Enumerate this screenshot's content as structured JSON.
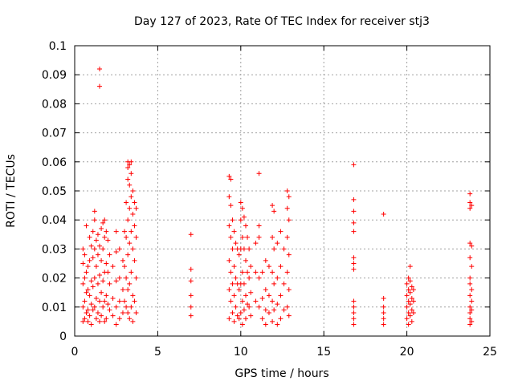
{
  "chart_data": {
    "type": "scatter",
    "title": "Day 127 of 2023, Rate Of TEC Index for receiver stj3",
    "xlabel": "GPS time / hours",
    "ylabel": "ROTI / TECUs",
    "xlim": [
      0,
      25
    ],
    "ylim": [
      0,
      0.1
    ],
    "xticks": [
      "0",
      "5",
      "10",
      "15",
      "20",
      "25"
    ],
    "yticks": [
      "0",
      "0.01",
      "0.02",
      "0.03",
      "0.04",
      "0.05",
      "0.06",
      "0.07",
      "0.08",
      "0.09",
      "0.1"
    ],
    "grid": true,
    "marker": "plus",
    "color": "#ff0000",
    "series": [
      {
        "points": [
          [
            0.5,
            0.03
          ],
          [
            0.5,
            0.025
          ],
          [
            0.5,
            0.018
          ],
          [
            0.5,
            0.01
          ],
          [
            0.5,
            0.005
          ],
          [
            0.6,
            0.028
          ],
          [
            0.6,
            0.02
          ],
          [
            0.6,
            0.012
          ],
          [
            0.6,
            0.006
          ],
          [
            0.7,
            0.038
          ],
          [
            0.7,
            0.022
          ],
          [
            0.7,
            0.015
          ],
          [
            0.7,
            0.008
          ],
          [
            0.8,
            0.024
          ],
          [
            0.8,
            0.016
          ],
          [
            0.8,
            0.009
          ],
          [
            0.8,
            0.005
          ],
          [
            0.9,
            0.034
          ],
          [
            0.9,
            0.026
          ],
          [
            0.9,
            0.014
          ],
          [
            0.9,
            0.007
          ],
          [
            1.0,
            0.031
          ],
          [
            1.0,
            0.019
          ],
          [
            1.0,
            0.011
          ],
          [
            1.0,
            0.004
          ],
          [
            1.1,
            0.036
          ],
          [
            1.1,
            0.027
          ],
          [
            1.1,
            0.017
          ],
          [
            1.1,
            0.009
          ],
          [
            1.2,
            0.043
          ],
          [
            1.2,
            0.04
          ],
          [
            1.2,
            0.03
          ],
          [
            1.2,
            0.02
          ],
          [
            1.2,
            0.01
          ],
          [
            1.3,
            0.033
          ],
          [
            1.3,
            0.024
          ],
          [
            1.3,
            0.013
          ],
          [
            1.3,
            0.006
          ],
          [
            1.4,
            0.035
          ],
          [
            1.4,
            0.028
          ],
          [
            1.4,
            0.018
          ],
          [
            1.4,
            0.008
          ],
          [
            1.5,
            0.092
          ],
          [
            1.5,
            0.086
          ],
          [
            1.5,
            0.031
          ],
          [
            1.5,
            0.021
          ],
          [
            1.5,
            0.012
          ],
          [
            1.5,
            0.005
          ],
          [
            1.6,
            0.037
          ],
          [
            1.6,
            0.026
          ],
          [
            1.6,
            0.015
          ],
          [
            1.6,
            0.007
          ],
          [
            1.7,
            0.039
          ],
          [
            1.7,
            0.03
          ],
          [
            1.7,
            0.019
          ],
          [
            1.7,
            0.01
          ],
          [
            1.8,
            0.04
          ],
          [
            1.8,
            0.034
          ],
          [
            1.8,
            0.022
          ],
          [
            1.8,
            0.012
          ],
          [
            1.8,
            0.005
          ],
          [
            1.9,
            0.036
          ],
          [
            1.9,
            0.025
          ],
          [
            1.9,
            0.014
          ],
          [
            1.9,
            0.006
          ],
          [
            2.0,
            0.033
          ],
          [
            2.0,
            0.022
          ],
          [
            2.0,
            0.011
          ],
          [
            2.1,
            0.028
          ],
          [
            2.1,
            0.018
          ],
          [
            2.1,
            0.009
          ],
          [
            2.3,
            0.024
          ],
          [
            2.3,
            0.013
          ],
          [
            2.3,
            0.007
          ],
          [
            2.5,
            0.036
          ],
          [
            2.5,
            0.029
          ],
          [
            2.5,
            0.019
          ],
          [
            2.5,
            0.01
          ],
          [
            2.5,
            0.004
          ],
          [
            2.7,
            0.03
          ],
          [
            2.7,
            0.02
          ],
          [
            2.7,
            0.012
          ],
          [
            2.7,
            0.006
          ],
          [
            2.9,
            0.026
          ],
          [
            2.9,
            0.016
          ],
          [
            2.9,
            0.008
          ],
          [
            3.0,
            0.036
          ],
          [
            3.0,
            0.024
          ],
          [
            3.0,
            0.012
          ],
          [
            3.1,
            0.046
          ],
          [
            3.1,
            0.034
          ],
          [
            3.1,
            0.02
          ],
          [
            3.1,
            0.01
          ],
          [
            3.2,
            0.06
          ],
          [
            3.2,
            0.058
          ],
          [
            3.2,
            0.054
          ],
          [
            3.2,
            0.04
          ],
          [
            3.2,
            0.028
          ],
          [
            3.2,
            0.016
          ],
          [
            3.2,
            0.008
          ],
          [
            3.3,
            0.059
          ],
          [
            3.3,
            0.052
          ],
          [
            3.3,
            0.044
          ],
          [
            3.3,
            0.032
          ],
          [
            3.3,
            0.018
          ],
          [
            3.3,
            0.006
          ],
          [
            3.4,
            0.06
          ],
          [
            3.4,
            0.056
          ],
          [
            3.4,
            0.048
          ],
          [
            3.4,
            0.036
          ],
          [
            3.4,
            0.022
          ],
          [
            3.4,
            0.01
          ],
          [
            3.5,
            0.05
          ],
          [
            3.5,
            0.042
          ],
          [
            3.5,
            0.03
          ],
          [
            3.5,
            0.014
          ],
          [
            3.5,
            0.005
          ],
          [
            3.6,
            0.046
          ],
          [
            3.6,
            0.038
          ],
          [
            3.6,
            0.026
          ],
          [
            3.6,
            0.012
          ],
          [
            3.7,
            0.044
          ],
          [
            3.7,
            0.034
          ],
          [
            3.7,
            0.02
          ],
          [
            3.7,
            0.008
          ],
          [
            7.0,
            0.035
          ],
          [
            7.0,
            0.023
          ],
          [
            7.0,
            0.019
          ],
          [
            7.0,
            0.014
          ],
          [
            7.0,
            0.01
          ],
          [
            7.0,
            0.007
          ],
          [
            9.3,
            0.055
          ],
          [
            9.3,
            0.048
          ],
          [
            9.3,
            0.038
          ],
          [
            9.3,
            0.026
          ],
          [
            9.3,
            0.016
          ],
          [
            9.3,
            0.006
          ],
          [
            9.4,
            0.054
          ],
          [
            9.4,
            0.045
          ],
          [
            9.4,
            0.034
          ],
          [
            9.4,
            0.022
          ],
          [
            9.4,
            0.012
          ],
          [
            9.5,
            0.04
          ],
          [
            9.5,
            0.03
          ],
          [
            9.5,
            0.018
          ],
          [
            9.5,
            0.008
          ],
          [
            9.6,
            0.036
          ],
          [
            9.6,
            0.024
          ],
          [
            9.6,
            0.014
          ],
          [
            9.6,
            0.005
          ],
          [
            9.7,
            0.032
          ],
          [
            9.7,
            0.02
          ],
          [
            9.7,
            0.01
          ],
          [
            9.8,
            0.03
          ],
          [
            9.8,
            0.018
          ],
          [
            9.8,
            0.007
          ],
          [
            9.9,
            0.028
          ],
          [
            9.9,
            0.016
          ],
          [
            9.9,
            0.006
          ],
          [
            10.0,
            0.046
          ],
          [
            10.0,
            0.04
          ],
          [
            10.0,
            0.03
          ],
          [
            10.0,
            0.018
          ],
          [
            10.0,
            0.008
          ],
          [
            10.1,
            0.044
          ],
          [
            10.1,
            0.034
          ],
          [
            10.1,
            0.022
          ],
          [
            10.1,
            0.012
          ],
          [
            10.1,
            0.004
          ],
          [
            10.2,
            0.041
          ],
          [
            10.2,
            0.03
          ],
          [
            10.2,
            0.018
          ],
          [
            10.2,
            0.009
          ],
          [
            10.3,
            0.038
          ],
          [
            10.3,
            0.026
          ],
          [
            10.3,
            0.014
          ],
          [
            10.3,
            0.006
          ],
          [
            10.4,
            0.034
          ],
          [
            10.4,
            0.022
          ],
          [
            10.4,
            0.011
          ],
          [
            10.5,
            0.03
          ],
          [
            10.5,
            0.02
          ],
          [
            10.5,
            0.01
          ],
          [
            10.6,
            0.024
          ],
          [
            10.6,
            0.015
          ],
          [
            10.6,
            0.007
          ],
          [
            10.9,
            0.032
          ],
          [
            10.9,
            0.022
          ],
          [
            10.9,
            0.012
          ],
          [
            11.1,
            0.056
          ],
          [
            11.1,
            0.038
          ],
          [
            11.1,
            0.034
          ],
          [
            11.1,
            0.02
          ],
          [
            11.1,
            0.01
          ],
          [
            11.3,
            0.022
          ],
          [
            11.3,
            0.013
          ],
          [
            11.3,
            0.006
          ],
          [
            11.5,
            0.026
          ],
          [
            11.5,
            0.016
          ],
          [
            11.5,
            0.009
          ],
          [
            11.5,
            0.004
          ],
          [
            11.7,
            0.024
          ],
          [
            11.7,
            0.014
          ],
          [
            11.7,
            0.008
          ],
          [
            11.9,
            0.045
          ],
          [
            11.9,
            0.034
          ],
          [
            11.9,
            0.022
          ],
          [
            11.9,
            0.012
          ],
          [
            11.9,
            0.005
          ],
          [
            12.0,
            0.043
          ],
          [
            12.0,
            0.03
          ],
          [
            12.0,
            0.018
          ],
          [
            12.0,
            0.009
          ],
          [
            12.2,
            0.032
          ],
          [
            12.2,
            0.02
          ],
          [
            12.2,
            0.011
          ],
          [
            12.2,
            0.004
          ],
          [
            12.4,
            0.036
          ],
          [
            12.4,
            0.024
          ],
          [
            12.4,
            0.014
          ],
          [
            12.4,
            0.006
          ],
          [
            12.6,
            0.03
          ],
          [
            12.6,
            0.018
          ],
          [
            12.6,
            0.009
          ],
          [
            12.8,
            0.05
          ],
          [
            12.8,
            0.044
          ],
          [
            12.8,
            0.034
          ],
          [
            12.8,
            0.022
          ],
          [
            12.8,
            0.01
          ],
          [
            12.9,
            0.048
          ],
          [
            12.9,
            0.04
          ],
          [
            12.9,
            0.028
          ],
          [
            12.9,
            0.016
          ],
          [
            12.9,
            0.007
          ],
          [
            16.8,
            0.059
          ],
          [
            16.8,
            0.047
          ],
          [
            16.8,
            0.043
          ],
          [
            16.8,
            0.039
          ],
          [
            16.8,
            0.036
          ],
          [
            16.8,
            0.027
          ],
          [
            16.8,
            0.025
          ],
          [
            16.8,
            0.023
          ],
          [
            16.8,
            0.012
          ],
          [
            16.8,
            0.01
          ],
          [
            16.8,
            0.008
          ],
          [
            16.8,
            0.006
          ],
          [
            16.8,
            0.004
          ],
          [
            18.6,
            0.042
          ],
          [
            18.6,
            0.013
          ],
          [
            18.6,
            0.01
          ],
          [
            18.6,
            0.008
          ],
          [
            18.6,
            0.006
          ],
          [
            18.6,
            0.004
          ],
          [
            20.0,
            0.018
          ],
          [
            20.0,
            0.014
          ],
          [
            20.0,
            0.01
          ],
          [
            20.0,
            0.006
          ],
          [
            20.1,
            0.02
          ],
          [
            20.1,
            0.016
          ],
          [
            20.1,
            0.012
          ],
          [
            20.1,
            0.008
          ],
          [
            20.1,
            0.004
          ],
          [
            20.2,
            0.024
          ],
          [
            20.2,
            0.019
          ],
          [
            20.2,
            0.015
          ],
          [
            20.2,
            0.011
          ],
          [
            20.2,
            0.007
          ],
          [
            20.3,
            0.017
          ],
          [
            20.3,
            0.013
          ],
          [
            20.3,
            0.009
          ],
          [
            20.3,
            0.005
          ],
          [
            20.4,
            0.016
          ],
          [
            20.4,
            0.012
          ],
          [
            20.4,
            0.008
          ],
          [
            23.8,
            0.049
          ],
          [
            23.8,
            0.046
          ],
          [
            23.8,
            0.044
          ],
          [
            23.8,
            0.032
          ],
          [
            23.8,
            0.027
          ],
          [
            23.8,
            0.02
          ],
          [
            23.8,
            0.018
          ],
          [
            23.8,
            0.014
          ],
          [
            23.8,
            0.01
          ],
          [
            23.8,
            0.008
          ],
          [
            23.8,
            0.006
          ],
          [
            23.8,
            0.004
          ],
          [
            23.9,
            0.045
          ],
          [
            23.9,
            0.031
          ],
          [
            23.9,
            0.024
          ],
          [
            23.9,
            0.016
          ],
          [
            23.9,
            0.012
          ],
          [
            23.9,
            0.009
          ],
          [
            23.9,
            0.005
          ]
        ]
      }
    ]
  }
}
